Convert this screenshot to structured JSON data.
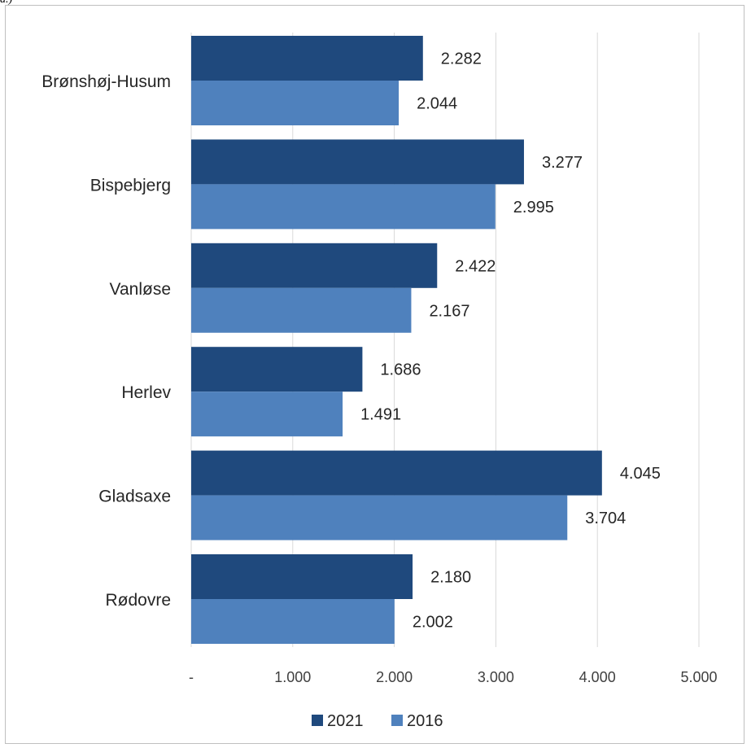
{
  "top_fragment": "a.)",
  "chart_data": {
    "type": "bar",
    "orientation": "horizontal",
    "categories": [
      "Brønshøj-Husum",
      "Bispebjerg",
      "Vanløse",
      "Herlev",
      "Gladsaxe",
      "Rødovre"
    ],
    "series": [
      {
        "name": "2021",
        "color": "#1f497d",
        "values": [
          2282,
          3277,
          2422,
          1686,
          4045,
          2180
        ],
        "labels": [
          "2.282",
          "3.277",
          "2.422",
          "1.686",
          "4.045",
          "2.180"
        ]
      },
      {
        "name": "2016",
        "color": "#4f81bd",
        "values": [
          2044,
          2995,
          2167,
          1491,
          3704,
          2002
        ],
        "labels": [
          "2.044",
          "2.995",
          "2.167",
          "1.491",
          "3.704",
          "2.002"
        ]
      }
    ],
    "xlim": [
      0,
      5000
    ],
    "xticks": [
      0,
      1000,
      2000,
      3000,
      4000,
      5000
    ],
    "xtick_labels": [
      "-",
      "1.000",
      "2.000",
      "3.000",
      "4.000",
      "5.000"
    ],
    "grid": true,
    "legend_position": "bottom-center"
  }
}
